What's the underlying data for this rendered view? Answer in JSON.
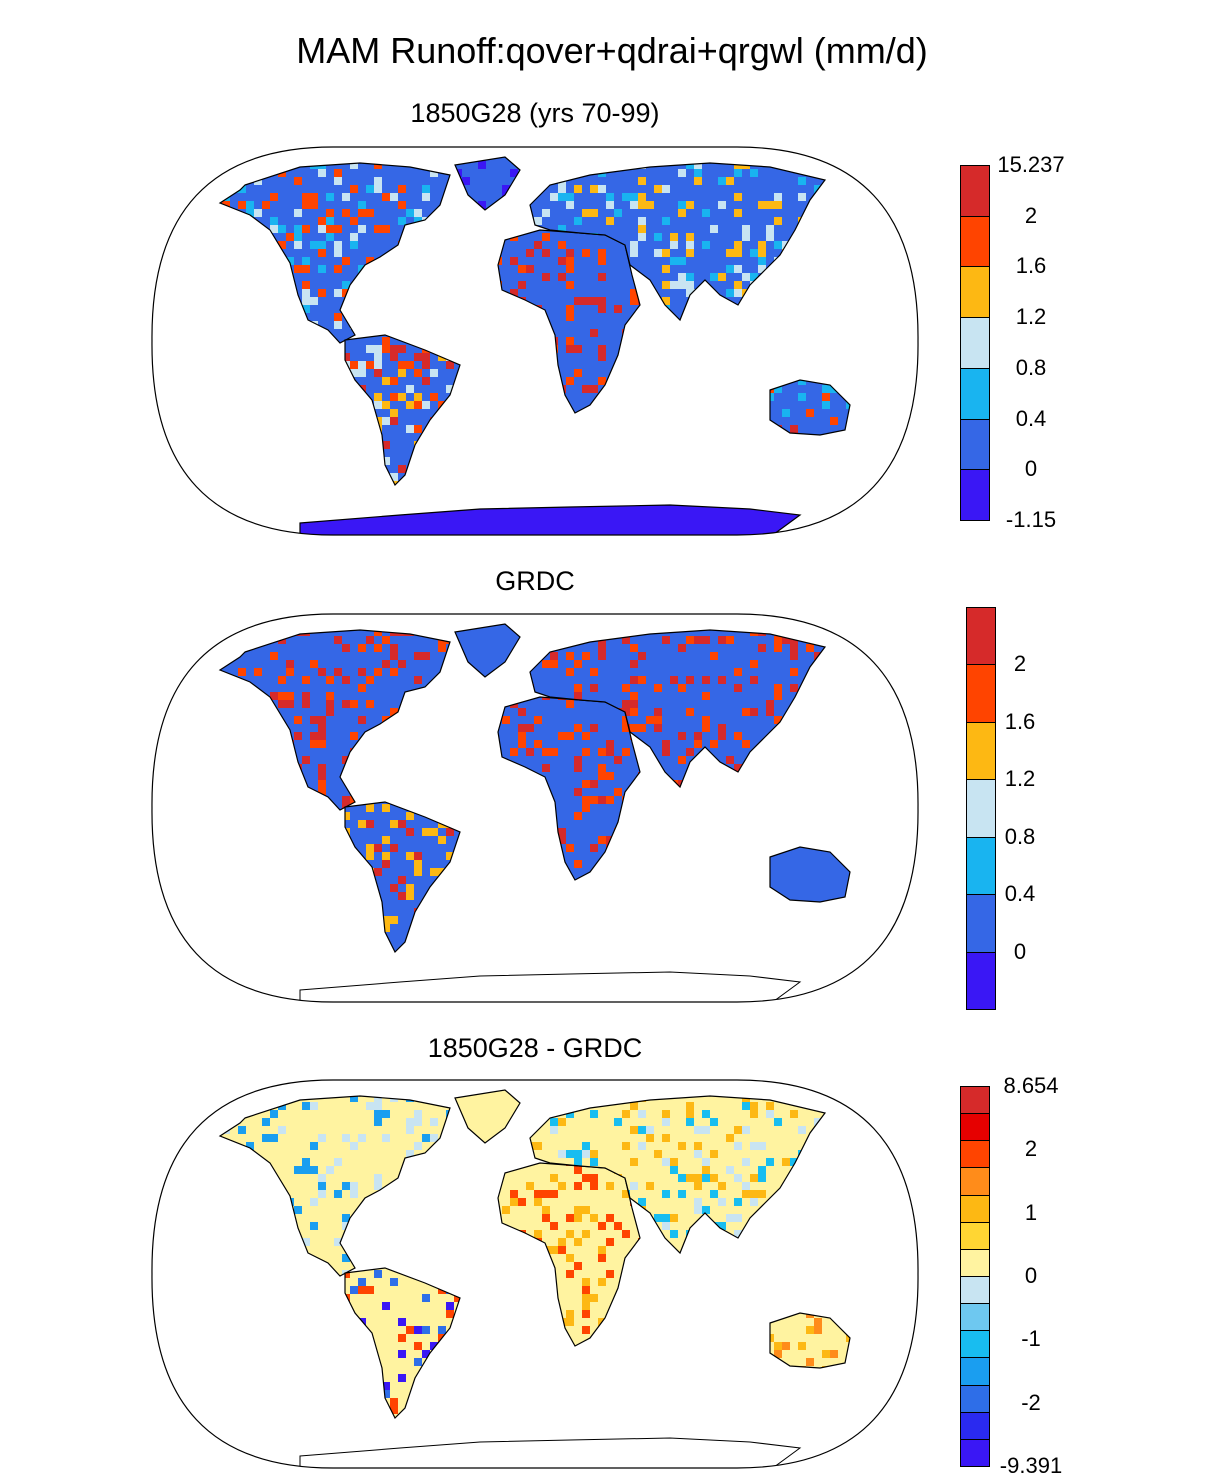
{
  "title": "MAM Runoff:qover+qdrai+qrgwl (mm/d)",
  "panels": [
    {
      "title": "1850G28 (yrs 70-99)",
      "palette": [
        "#3a17f5",
        "#3567e6",
        "#19b4f0",
        "#c8e4f2",
        "#fdb813",
        "#ff4400",
        "#d62a2a"
      ],
      "colorbar_labels": [
        "15.237",
        "2",
        "1.6",
        "1.2",
        "0.8",
        "0.4",
        "0",
        "-1.15"
      ],
      "ocean_color": "#ffffff",
      "land_base": "#3567e6",
      "antarctica": "#3a17f5"
    },
    {
      "title": "GRDC",
      "palette": [
        "#3a17f5",
        "#3567e6",
        "#19b4f0",
        "#c8e4f2",
        "#fdb813",
        "#ff4400",
        "#d62a2a"
      ],
      "colorbar_labels": [
        "2",
        "1.6",
        "1.2",
        "0.8",
        "0.4",
        "0"
      ],
      "ocean_color": "#ffffff",
      "land_base": "#3567e6",
      "antarctica": "#ffffff"
    },
    {
      "title": "1850G28 - GRDC",
      "palette": [
        "#3a17f5",
        "#2a2af0",
        "#2e6ee8",
        "#1a9ef0",
        "#18bdf0",
        "#6ec8f0",
        "#c8e4f2",
        "#fff3a0",
        "#ffd633",
        "#fdb813",
        "#ff8c1a",
        "#ff4400",
        "#e60000",
        "#d62a2a"
      ],
      "colorbar_labels": [
        "8.654",
        "2",
        "1",
        "0",
        "-1",
        "-2",
        "-9.391"
      ],
      "ocean_color": "#ffffff",
      "land_base": "#fff3a0",
      "antarctica": "#ffffff"
    }
  ]
}
